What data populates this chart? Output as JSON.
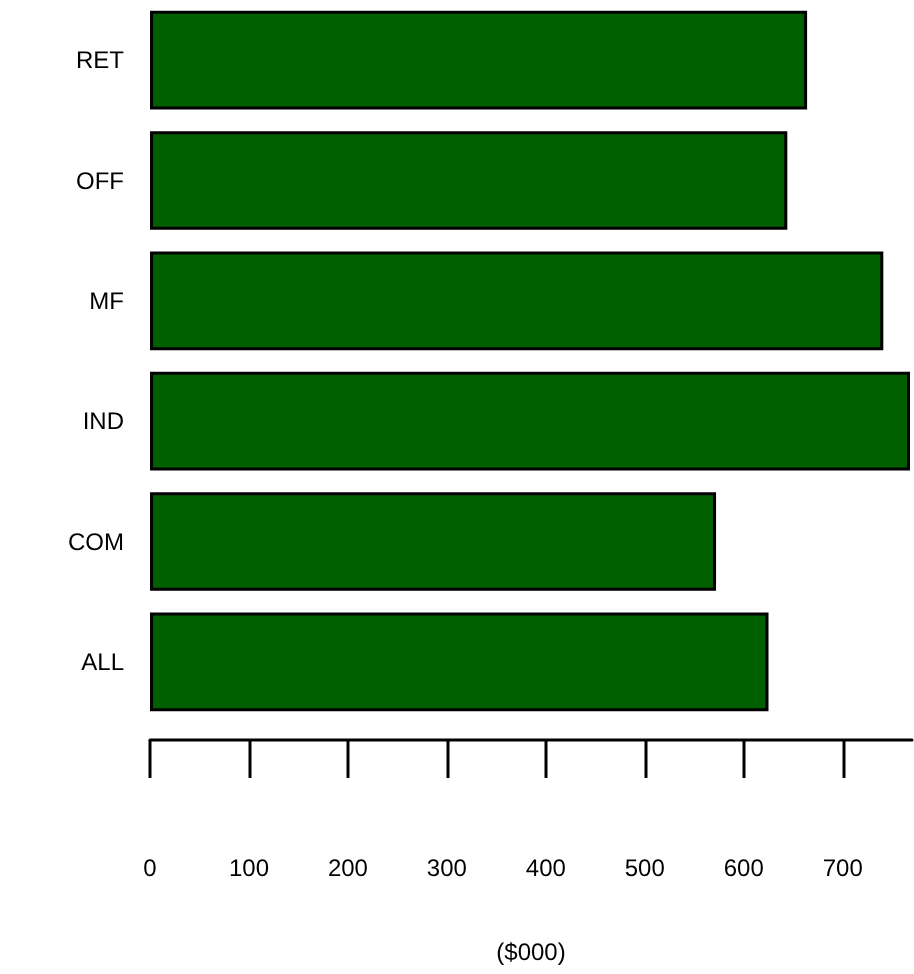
{
  "chart_data": {
    "type": "bar",
    "orientation": "horizontal",
    "xlabel": "($000)",
    "categories": [
      "RET",
      "OFF",
      "MF",
      "IND",
      "COM",
      "ALL"
    ],
    "values": [
      664,
      644,
      741,
      768,
      572,
      625
    ],
    "color": "#006000",
    "xlim": [
      0,
      770
    ],
    "xticks": [
      0,
      100,
      200,
      300,
      400,
      500,
      600,
      700
    ]
  }
}
